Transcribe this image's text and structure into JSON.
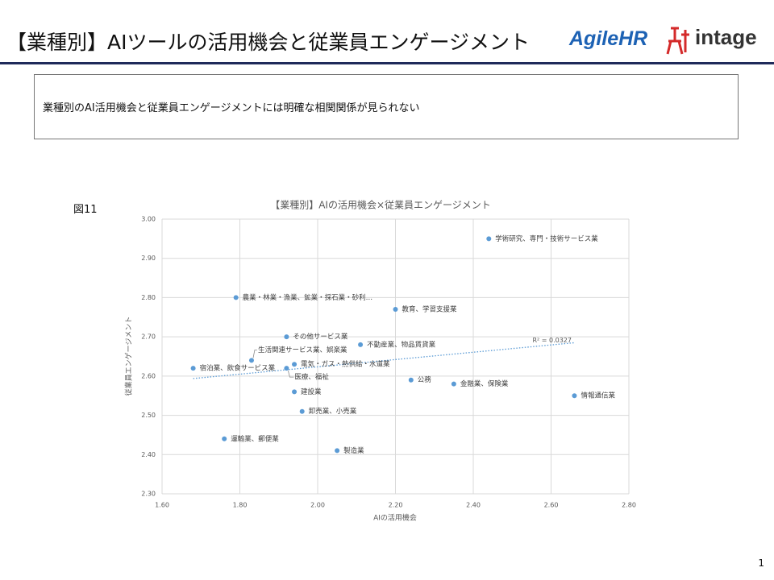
{
  "header": {
    "title": "【業種別】AIツールの活用機会と従業員エンゲージメント",
    "logos": [
      "AgileHR",
      "intage"
    ]
  },
  "summary": "業種別のAI活用機会と従業員エンゲージメントには明確な相関関係が見られない",
  "figure_label": "図11",
  "page_number": "1",
  "chart_data": {
    "type": "scatter",
    "title": "【業種別】AIの活用機会×従業員エンゲージメント",
    "x_label": "AIの活用機会",
    "y_label": "従業員エンゲージメント",
    "categories": [
      "学術研究、専門・技術サービス業",
      "農業・林業・漁業、鉱業・採石業・砂利…",
      "教育、学習支援業",
      "その他サービス業",
      "不動産業、物品賃貸業",
      "生活関連サービス業、娯楽業",
      "宿泊業、飲食サービス業",
      "電気・ガス・熱供給・水道業",
      "医療、福祉",
      "公務",
      "金融業、保険業",
      "情報通信業",
      "建設業",
      "卸売業、小売業",
      "運輸業、郵便業",
      "製造業"
    ],
    "x": [
      2.44,
      1.79,
      2.2,
      1.92,
      2.11,
      1.83,
      1.68,
      1.94,
      1.92,
      2.24,
      2.35,
      2.66,
      1.94,
      1.96,
      1.76,
      2.05
    ],
    "values": [
      2.95,
      2.8,
      2.77,
      2.7,
      2.68,
      2.64,
      2.62,
      2.63,
      2.62,
      2.59,
      2.58,
      2.55,
      2.56,
      2.51,
      2.44,
      2.41
    ],
    "color": "#5b9bd5",
    "trendline": true,
    "trendline_label": "R² = 0.0327",
    "xlim": [
      1.6,
      2.8
    ],
    "xticks": [
      {
        "value": 1.6,
        "label": "1.60"
      },
      {
        "value": 1.8,
        "label": "1.80"
      },
      {
        "value": 2.0,
        "label": "2.00"
      },
      {
        "value": 2.2,
        "label": "2.20"
      },
      {
        "value": 2.4,
        "label": "2.40"
      },
      {
        "value": 2.6,
        "label": "2.60"
      },
      {
        "value": 2.8,
        "label": "2.80"
      }
    ],
    "ylim": [
      2.3,
      3.0
    ],
    "yticks": [
      {
        "value": 2.3,
        "label": "2.30"
      },
      {
        "value": 2.4,
        "label": "2.40"
      },
      {
        "value": 2.5,
        "label": "2.50"
      },
      {
        "value": 2.6,
        "label": "2.60"
      },
      {
        "value": 2.7,
        "label": "2.70"
      },
      {
        "value": 2.8,
        "label": "2.80"
      },
      {
        "value": 2.9,
        "label": "2.90"
      },
      {
        "value": 3.0,
        "label": "3.00"
      }
    ],
    "grid": true
  }
}
